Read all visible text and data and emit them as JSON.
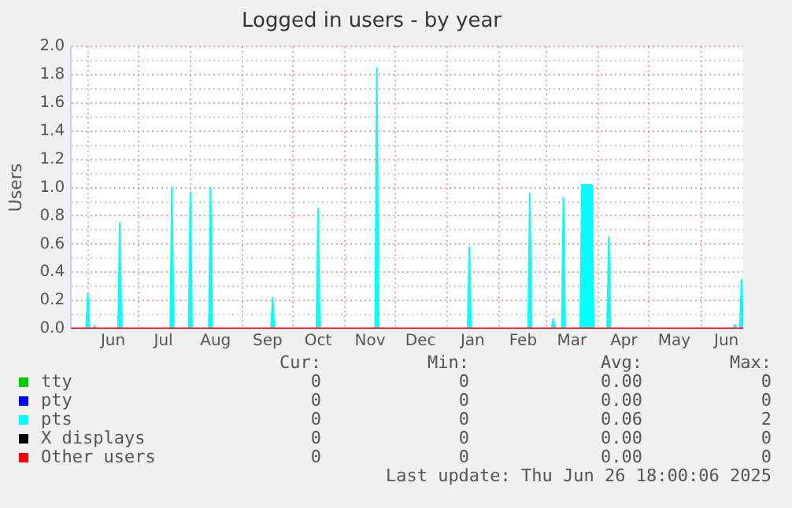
{
  "chart_data": {
    "type": "area",
    "title": "Logged in users - by year",
    "ylabel": "Users",
    "xlim": [
      "2024-05-22",
      "2025-06-26"
    ],
    "xticks": [
      {
        "value": "2024-06-01",
        "label": null
      },
      {
        "value": "2024-06-16",
        "label": "Jun"
      },
      {
        "value": "2024-07-01",
        "label": null
      },
      {
        "value": "2024-07-16",
        "label": "Jul"
      },
      {
        "value": "2024-08-01",
        "label": null
      },
      {
        "value": "2024-08-16",
        "label": "Aug"
      },
      {
        "value": "2024-09-01",
        "label": null
      },
      {
        "value": "2024-09-16",
        "label": "Sep"
      },
      {
        "value": "2024-10-01",
        "label": null
      },
      {
        "value": "2024-10-16",
        "label": "Oct"
      },
      {
        "value": "2024-11-01",
        "label": null
      },
      {
        "value": "2024-11-16",
        "label": "Nov"
      },
      {
        "value": "2024-12-01",
        "label": null
      },
      {
        "value": "2024-12-16",
        "label": "Dec"
      },
      {
        "value": "2025-01-01",
        "label": null
      },
      {
        "value": "2025-01-16",
        "label": "Jan"
      },
      {
        "value": "2025-02-01",
        "label": null
      },
      {
        "value": "2025-02-15",
        "label": "Feb"
      },
      {
        "value": "2025-03-01",
        "label": null
      },
      {
        "value": "2025-03-16",
        "label": "Mar"
      },
      {
        "value": "2025-04-01",
        "label": null
      },
      {
        "value": "2025-04-16",
        "label": "Apr"
      },
      {
        "value": "2025-05-01",
        "label": null
      },
      {
        "value": "2025-05-16",
        "label": "May"
      },
      {
        "value": "2025-06-01",
        "label": null
      },
      {
        "value": "2025-06-16",
        "label": "Jun"
      }
    ],
    "ylim": [
      0,
      2
    ],
    "yticks": [
      {
        "value": 0,
        "label": "0.0"
      },
      {
        "value": 0.1,
        "label": null
      },
      {
        "value": 0.2,
        "label": "0.2"
      },
      {
        "value": 0.3,
        "label": null
      },
      {
        "value": 0.4,
        "label": "0.4"
      },
      {
        "value": 0.5,
        "label": null
      },
      {
        "value": 0.6,
        "label": "0.6"
      },
      {
        "value": 0.7,
        "label": null
      },
      {
        "value": 0.8,
        "label": "0.8"
      },
      {
        "value": 0.9,
        "label": null
      },
      {
        "value": 1,
        "label": "1.0"
      },
      {
        "value": 1.1,
        "label": null
      },
      {
        "value": 1.2,
        "label": "1.2"
      },
      {
        "value": 1.3,
        "label": null
      },
      {
        "value": 1.4,
        "label": "1.4"
      },
      {
        "value": 1.5,
        "label": null
      },
      {
        "value": 1.6,
        "label": "1.6"
      },
      {
        "value": 1.7,
        "label": null
      },
      {
        "value": 1.8,
        "label": "1.8"
      },
      {
        "value": 1.9,
        "label": null
      },
      {
        "value": 2,
        "label": "2.0"
      }
    ],
    "grid": true,
    "legend": "bottom",
    "marker": "none",
    "series": [
      {
        "name": "tty",
        "type": "line",
        "color": "#00cc00"
      },
      {
        "name": "pty",
        "type": "line",
        "color": "#0000ff"
      },
      {
        "name": "pts",
        "color": "#00ffff",
        "x": [
          "2024-05-22",
          "2024-05-31",
          "2024-06-01",
          "2024-06-02",
          "2024-06-04",
          "2024-06-05",
          "2024-06-06",
          "2024-06-19",
          "2024-06-20",
          "2024-06-21",
          "2024-07-20",
          "2024-07-21",
          "2024-07-22",
          "2024-07-31",
          "2024-08-01",
          "2024-08-02",
          "2024-08-12",
          "2024-08-13",
          "2024-08-14",
          "2024-09-18",
          "2024-09-19",
          "2024-09-20",
          "2024-10-15",
          "2024-10-16",
          "2024-10-17",
          "2024-11-19",
          "2024-11-20",
          "2024-11-21",
          "2025-01-13",
          "2025-01-14",
          "2025-01-15",
          "2025-02-18",
          "2025-02-19",
          "2025-02-20",
          "2025-03-04",
          "2025-03-05",
          "2025-03-06",
          "2025-03-10",
          "2025-03-11",
          "2025-03-12",
          "2025-03-21",
          "2025-03-22",
          "2025-03-28",
          "2025-03-29",
          "2025-04-06",
          "2025-04-07",
          "2025-04-08",
          "2025-06-20",
          "2025-06-21",
          "2025-06-22",
          "2025-06-24",
          "2025-06-25",
          "2025-06-26"
        ],
        "values": [
          0,
          0,
          0.25,
          0,
          0,
          0.02,
          0,
          0,
          0.75,
          0,
          0,
          1,
          0,
          0,
          0.97,
          0,
          0,
          1,
          0,
          0,
          0.22,
          0,
          0,
          0.85,
          0,
          0,
          1.85,
          0,
          0,
          0.58,
          0,
          0,
          0.96,
          0,
          0,
          0.07,
          0,
          0,
          0.93,
          0,
          0,
          1.02,
          1.02,
          0,
          0,
          0.65,
          0,
          0,
          0.03,
          0,
          0,
          0.35,
          0
        ]
      },
      {
        "name": "X displays",
        "type": "line",
        "color": "#000000"
      },
      {
        "name": "Other users",
        "type": "line",
        "color": "#ff0000",
        "x": [
          "2024-05-22",
          "2025-06-26"
        ],
        "values": [
          0,
          0
        ]
      }
    ],
    "annotations": [
      "Cur:",
      "Min:",
      "Avg:",
      "Max:",
      "0",
      "0",
      "0.00",
      "0",
      "0",
      "0",
      "0.00",
      "0",
      "0",
      "0",
      "0.06",
      "2",
      "0",
      "0",
      "0.00",
      "0",
      "0",
      "0",
      "0.00",
      "0",
      "Last update: Thu Jun 26 18:00:06 2025"
    ]
  }
}
